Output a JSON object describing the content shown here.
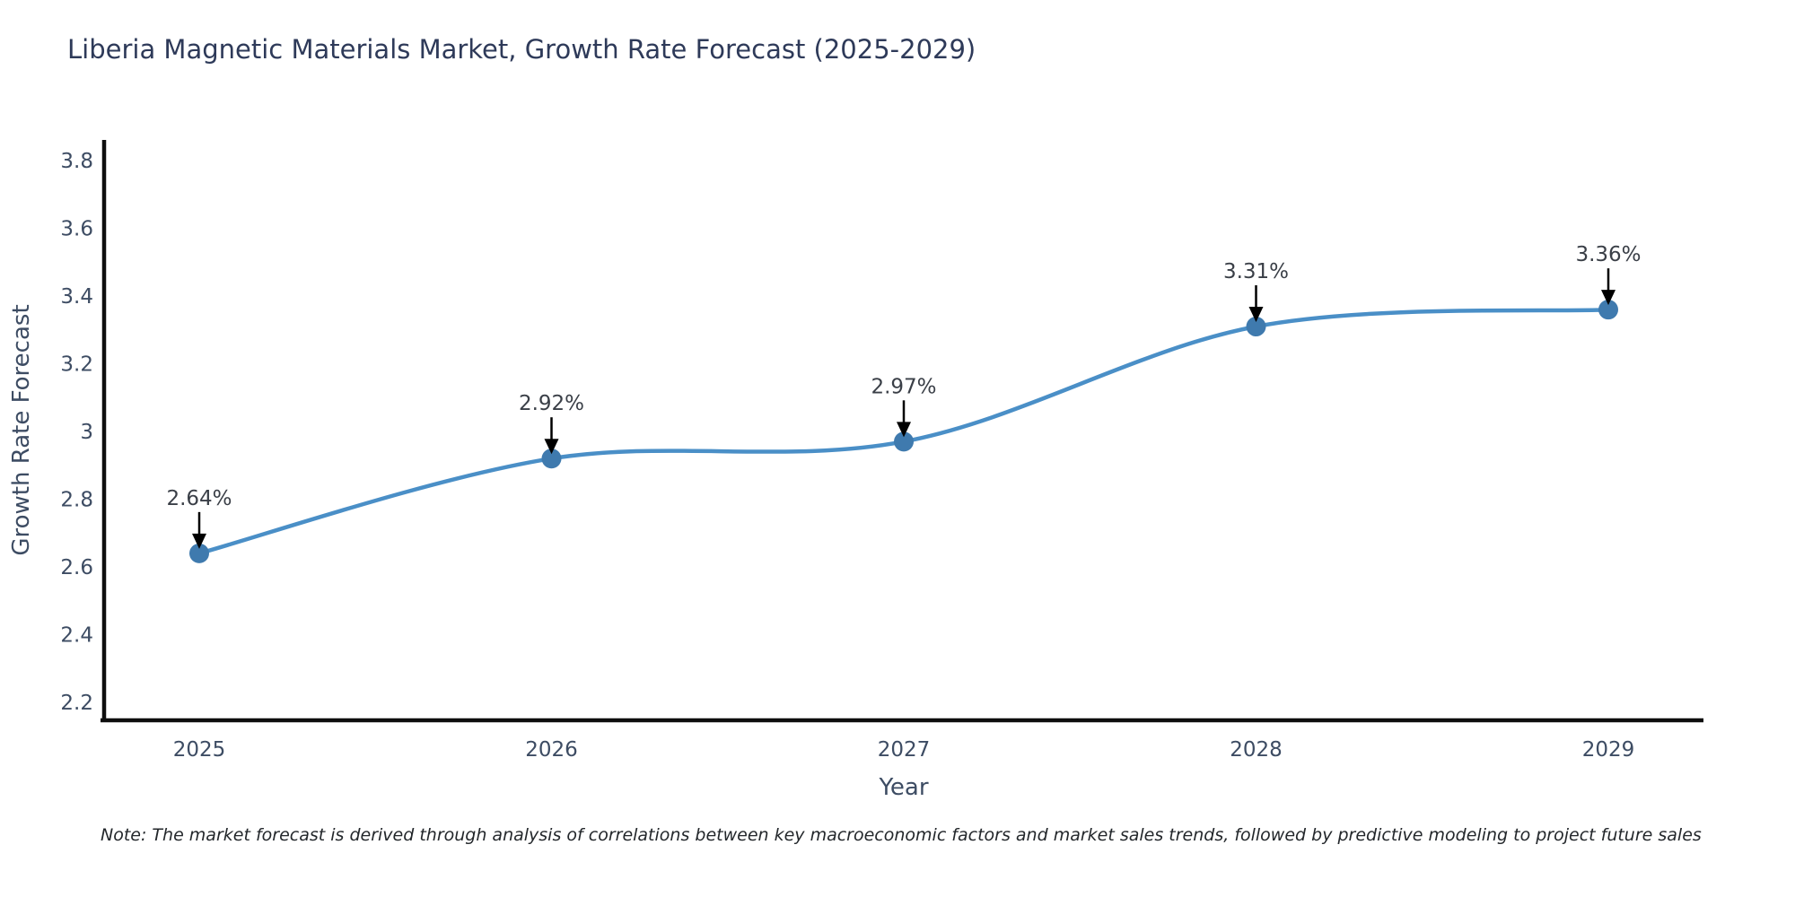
{
  "title": "Liberia Magnetic Materials Market, Growth Rate Forecast (2025-2029)",
  "note": "Note: The market forecast is derived through analysis of correlations between key macroeconomic factors and market sales trends, followed by predictive modeling to project future sales",
  "chart_data": {
    "type": "line",
    "title": "Liberia Magnetic Materials Market, Growth Rate Forecast (2025-2029)",
    "xlabel": "Year",
    "ylabel": "Growth Rate Forecast",
    "x": [
      2025,
      2026,
      2027,
      2028,
      2029
    ],
    "x_labels": [
      "2025",
      "2026",
      "2027",
      "2028",
      "2029"
    ],
    "series": [
      {
        "name": "Growth Rate Forecast",
        "values": [
          2.64,
          2.92,
          2.97,
          3.31,
          3.36
        ],
        "point_labels": [
          "2.64%",
          "2.92%",
          "2.97%",
          "3.31%",
          "3.36%"
        ]
      }
    ],
    "yticks": [
      2.2,
      2.4,
      2.6,
      2.8,
      3.0,
      3.2,
      3.4,
      3.6,
      3.8
    ],
    "ytick_labels": [
      "2.2",
      "2.4",
      "2.6",
      "2.8",
      "3",
      "3.2",
      "3.4",
      "3.6",
      "3.8"
    ],
    "ylim": [
      2.152,
      3.856
    ],
    "grid": false,
    "legend_position": "none",
    "line_shape": "spline",
    "annotation_arrows": true,
    "colors": {
      "line": "#4a8fc7",
      "marker": "#3f7aae",
      "axis": "#0e0e0e",
      "tick_text": "#3d4c63",
      "axis_title_text": "#3d4c63",
      "title_text": "#2e3a59",
      "annotation_text": "#3a3f47",
      "arrow": "#000000",
      "background": "#ffffff"
    }
  }
}
